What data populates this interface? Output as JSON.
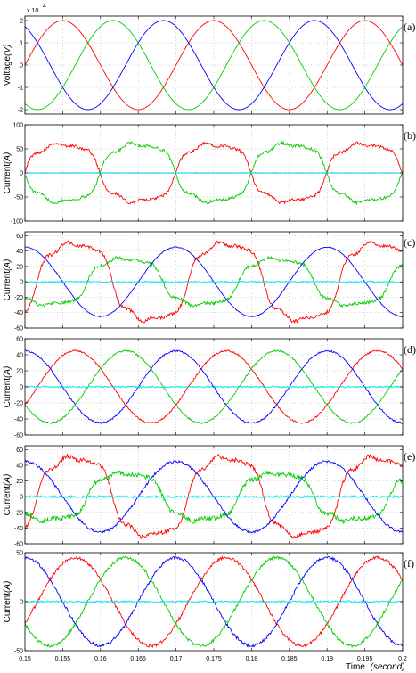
{
  "x_axis": {
    "label": "Time",
    "unit": "(second)",
    "ticks": [
      "0.15",
      "0.155",
      "0.16",
      "0.165",
      "0.17",
      "0.175",
      "0.18",
      "0.185",
      "0.19",
      "0.195",
      "0.2"
    ]
  },
  "chart_data": [
    {
      "type": "line",
      "panel_label": "(a)",
      "ylabel": "Voltage",
      "yunit": "(V)",
      "exponent": "x 10",
      "exponent_power": "4",
      "xlim": [
        0.15,
        0.2
      ],
      "ylim": [
        -2.2,
        2.2
      ],
      "yticks": [
        -2,
        -1,
        0,
        1,
        2
      ],
      "ytick_labels": [
        "-2",
        "-1",
        "0",
        "1",
        "2"
      ],
      "grid": true,
      "series": [
        {
          "color": "#ff0000",
          "amplitude": 2,
          "phase_deg": 180,
          "noise": 0,
          "shape": "sine"
        },
        {
          "color": "#0000ff",
          "amplitude": 2,
          "phase_deg": -60,
          "noise": 0,
          "shape": "sine"
        },
        {
          "color": "#00cc00",
          "amplitude": 2,
          "phase_deg": 60,
          "noise": 0,
          "shape": "sine"
        }
      ]
    },
    {
      "type": "line",
      "panel_label": "(b)",
      "ylabel": "Current",
      "yunit": "(A)",
      "xlim": [
        0.15,
        0.2
      ],
      "ylim": [
        -100,
        100
      ],
      "yticks": [
        -100,
        -50,
        0,
        50,
        100
      ],
      "ytick_labels": [
        "-100",
        "-50",
        "0",
        "50",
        "100"
      ],
      "grid": true,
      "series": [
        {
          "color": "#ff0000",
          "amplitude": 70,
          "phase_deg": 180,
          "noise": 3,
          "shape": "distorted"
        },
        {
          "color": "#00cc00",
          "amplitude": 70,
          "phase_deg": 0,
          "noise": 3,
          "shape": "distorted"
        },
        {
          "color": "#0000ff",
          "amplitude": 0,
          "phase_deg": 0,
          "noise": 0,
          "shape": "sine"
        },
        {
          "color": "#00e5ee",
          "amplitude": 0,
          "phase_deg": 0,
          "noise": 0.5,
          "shape": "sine"
        }
      ]
    },
    {
      "type": "line",
      "panel_label": "(c)",
      "ylabel": "Current",
      "yunit": "(A)",
      "xlim": [
        0.15,
        0.2
      ],
      "ylim": [
        -60,
        65
      ],
      "yticks": [
        -60,
        -40,
        -20,
        0,
        20,
        40,
        60
      ],
      "ytick_labels": [
        "-60",
        "-40",
        "-20",
        "0",
        "20",
        "40",
        "60"
      ],
      "grid": true,
      "series": [
        {
          "color": "#ff0000",
          "amplitude": 58,
          "phase_deg": 150,
          "noise": 2,
          "shape": "distorted"
        },
        {
          "color": "#00cc00",
          "amplitude": 35,
          "phase_deg": 30,
          "noise": 2,
          "shape": "distorted"
        },
        {
          "color": "#0000ff",
          "amplitude": 45,
          "phase_deg": -90,
          "noise": 0.5,
          "shape": "sine"
        },
        {
          "color": "#00e5ee",
          "amplitude": 0,
          "phase_deg": 0,
          "noise": 1,
          "shape": "sine"
        }
      ]
    },
    {
      "type": "line",
      "panel_label": "(d)",
      "ylabel": "Current",
      "yunit": "(A)",
      "xlim": [
        0.15,
        0.2
      ],
      "ylim": [
        -60,
        60
      ],
      "yticks": [
        -60,
        -40,
        -20,
        0,
        20,
        40,
        60
      ],
      "ytick_labels": [
        "-60",
        "-40",
        "-20",
        "0",
        "20",
        "40",
        "60"
      ],
      "grid": true,
      "series": [
        {
          "color": "#ff0000",
          "amplitude": 45,
          "phase_deg": 150,
          "noise": 1,
          "shape": "sine"
        },
        {
          "color": "#0000ff",
          "amplitude": 45,
          "phase_deg": -90,
          "noise": 1,
          "shape": "sine"
        },
        {
          "color": "#00cc00",
          "amplitude": 45,
          "phase_deg": 30,
          "noise": 1,
          "shape": "sine"
        },
        {
          "color": "#00e5ee",
          "amplitude": 0,
          "phase_deg": 0,
          "noise": 1,
          "shape": "sine"
        }
      ]
    },
    {
      "type": "line",
      "panel_label": "(e)",
      "ylabel": "Current",
      "yunit": "(A)",
      "xlim": [
        0.15,
        0.2
      ],
      "ylim": [
        -60,
        65
      ],
      "yticks": [
        -60,
        -40,
        -20,
        0,
        20,
        40,
        60
      ],
      "ytick_labels": [
        "-60",
        "-40",
        "-20",
        "0",
        "20",
        "40",
        "60"
      ],
      "grid": true,
      "series": [
        {
          "color": "#ff0000",
          "amplitude": 58,
          "phase_deg": 150,
          "noise": 2.5,
          "shape": "distorted"
        },
        {
          "color": "#00cc00",
          "amplitude": 35,
          "phase_deg": 30,
          "noise": 3,
          "shape": "distorted"
        },
        {
          "color": "#0000ff",
          "amplitude": 45,
          "phase_deg": -90,
          "noise": 1.5,
          "shape": "sine"
        },
        {
          "color": "#00e5ee",
          "amplitude": 0,
          "phase_deg": 0,
          "noise": 1.5,
          "shape": "sine"
        }
      ]
    },
    {
      "type": "line",
      "panel_label": "(f)",
      "ylabel": "Current",
      "yunit": "(A)",
      "xlim": [
        0.15,
        0.2
      ],
      "ylim": [
        -50,
        50
      ],
      "yticks": [
        -50,
        0,
        50
      ],
      "ytick_labels": [
        "-50",
        "0",
        "50"
      ],
      "grid": true,
      "series": [
        {
          "color": "#ff0000",
          "amplitude": 45,
          "phase_deg": 150,
          "noise": 1.5,
          "shape": "sine"
        },
        {
          "color": "#0000ff",
          "amplitude": 45,
          "phase_deg": -90,
          "noise": 1.5,
          "shape": "sine"
        },
        {
          "color": "#00cc00",
          "amplitude": 45,
          "phase_deg": 30,
          "noise": 1.5,
          "shape": "sine"
        },
        {
          "color": "#00e5ee",
          "amplitude": 0,
          "phase_deg": 0,
          "noise": 1,
          "shape": "sine"
        }
      ]
    }
  ]
}
